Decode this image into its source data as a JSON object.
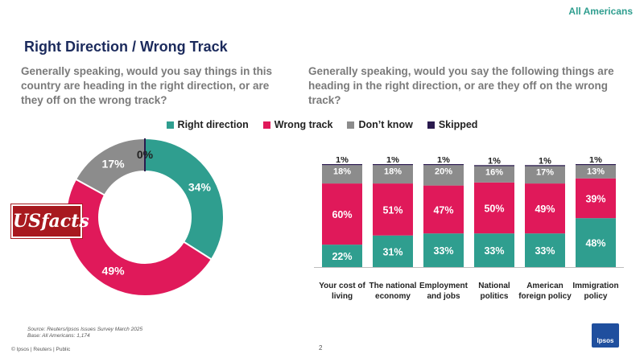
{
  "header": {
    "tag": "All Americans",
    "title": "Right Direction / Wrong Track"
  },
  "questions": {
    "left": "Generally speaking, would you say things in this country are heading in the right direction, or are they off on the wrong track?",
    "right": "Generally speaking, would you say the following things are heading in the right direction, or are they off on the wrong track?"
  },
  "legend": [
    {
      "label": "Right direction",
      "color": "#2f9e8f"
    },
    {
      "label": "Wrong track",
      "color": "#e0195a"
    },
    {
      "label": "Don’t know",
      "color": "#8c8c8c"
    },
    {
      "label": "Skipped",
      "color": "#2a1a4e"
    }
  ],
  "chart_data": [
    {
      "type": "pie",
      "donut": true,
      "categories": [
        "Right direction",
        "Wrong track",
        "Don’t know",
        "Skipped"
      ],
      "values": [
        34,
        49,
        17,
        0
      ],
      "labels": [
        "34%",
        "49%",
        "17%",
        "0%"
      ],
      "colors": [
        "#2f9e8f",
        "#e0195a",
        "#8c8c8c",
        "#2a1a4e"
      ]
    },
    {
      "type": "bar",
      "stacked": true,
      "orientation": "vertical",
      "categories": [
        "Your cost of living",
        "The national economy",
        "Employment and jobs",
        "National politics",
        "American foreign policy",
        "Immigration policy"
      ],
      "category_lines": [
        [
          "Your cost of",
          "living"
        ],
        [
          "The national",
          "economy"
        ],
        [
          "Employment",
          "and jobs"
        ],
        [
          "National",
          "politics"
        ],
        [
          "American",
          "foreign policy"
        ],
        [
          "Immigration",
          "policy"
        ]
      ],
      "series": [
        {
          "name": "Right direction",
          "color": "#2f9e8f",
          "values": [
            22,
            31,
            33,
            33,
            33,
            48
          ]
        },
        {
          "name": "Wrong track",
          "color": "#e0195a",
          "values": [
            60,
            51,
            47,
            50,
            49,
            39
          ]
        },
        {
          "name": "Don’t know",
          "color": "#8c8c8c",
          "values": [
            18,
            18,
            20,
            16,
            17,
            13
          ]
        },
        {
          "name": "Skipped",
          "color": "#2a1a4e",
          "values": [
            1,
            1,
            1,
            1,
            1,
            1
          ]
        }
      ],
      "ylim": [
        0,
        101
      ]
    }
  ],
  "logo": {
    "text": "USfacts"
  },
  "footer": {
    "source": "Source: Reuters/Ipsos Issues Survey March 2025",
    "base": "Base: All Americans: 1,174",
    "copyright": "© Ipsos | Reuters | Public",
    "page": "2",
    "brand": "Ipsos"
  }
}
